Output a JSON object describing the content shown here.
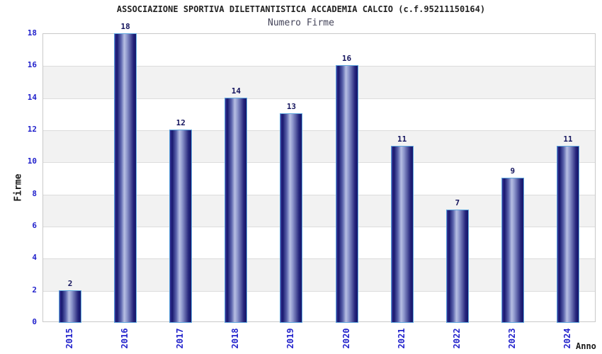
{
  "chart_data": {
    "type": "bar",
    "title": "ASSOCIAZIONE SPORTIVA DILETTANTISTICA ACCADEMIA CALCIO (c.f.95211150164)",
    "subtitle": "Numero Firme",
    "xlabel": "Anno",
    "ylabel": "Firme",
    "categories": [
      "2015",
      "2016",
      "2017",
      "2018",
      "2019",
      "2020",
      "2021",
      "2022",
      "2023",
      "2024"
    ],
    "values": [
      2,
      18,
      12,
      14,
      13,
      16,
      11,
      7,
      9,
      11
    ],
    "ylim": [
      0,
      18
    ],
    "ytick_step": 2,
    "grid": "horizontal-bands-alternating",
    "legend": "none",
    "bar_value_labels": true,
    "colors": {
      "background": "#ffffff",
      "title": "#222222",
      "subtitle": "#45455a",
      "tick_labels": "#2222cc",
      "value_labels": "#15155e",
      "bar_dark": "#15156a",
      "bar_highlight": "#b7bfe3",
      "bar_border": "#5ea6dd",
      "band_gray": "#f2f2f2",
      "gridline": "#dcdcdc",
      "plot_border": "#c9c9c9"
    }
  }
}
